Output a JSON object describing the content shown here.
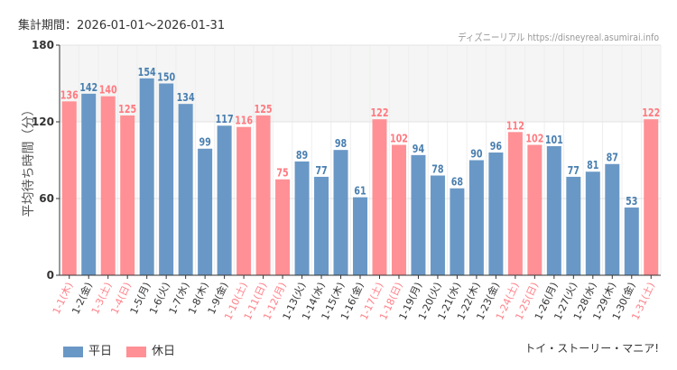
{
  "header": {
    "period": "集計期間：2026-01-01〜2026-01-31",
    "credit": "ディズニーリアル https://disneyreal.asumirai.info"
  },
  "footer": "トイ・ストーリー・マニア!",
  "legend": [
    {
      "label": "平日",
      "color": "#6a98c6"
    },
    {
      "label": "休日",
      "color": "#ff9095"
    }
  ],
  "chart_data": {
    "type": "bar",
    "title": "",
    "xlabel": "",
    "ylabel": "平均待ち時間（分）",
    "ylim": [
      0,
      180
    ],
    "yticks": [
      0,
      60,
      120,
      180
    ],
    "grid": true,
    "legend_position": "bottom-left",
    "categories": [
      "1-1(木)",
      "1-2(金)",
      "1-3(土)",
      "1-4(日)",
      "1-5(月)",
      "1-6(火)",
      "1-7(水)",
      "1-8(木)",
      "1-9(金)",
      "1-10(土)",
      "1-11(日)",
      "1-12(月)",
      "1-13(火)",
      "1-14(水)",
      "1-15(木)",
      "1-16(金)",
      "1-17(土)",
      "1-18(日)",
      "1-19(月)",
      "1-20(火)",
      "1-21(水)",
      "1-22(木)",
      "1-23(金)",
      "1-24(土)",
      "1-25(日)",
      "1-26(月)",
      "1-27(火)",
      "1-28(水)",
      "1-29(木)",
      "1-30(金)",
      "1-31(土)"
    ],
    "values": [
      136,
      142,
      140,
      125,
      154,
      150,
      134,
      99,
      117,
      116,
      125,
      75,
      89,
      77,
      98,
      61,
      122,
      102,
      94,
      78,
      68,
      90,
      96,
      112,
      102,
      101,
      77,
      81,
      87,
      53,
      122
    ],
    "holiday": [
      true,
      false,
      true,
      true,
      false,
      false,
      false,
      false,
      false,
      true,
      true,
      true,
      false,
      false,
      false,
      false,
      true,
      true,
      false,
      false,
      false,
      false,
      false,
      true,
      true,
      false,
      false,
      false,
      false,
      false,
      true
    ],
    "series_names": [
      "平日",
      "休日"
    ]
  }
}
